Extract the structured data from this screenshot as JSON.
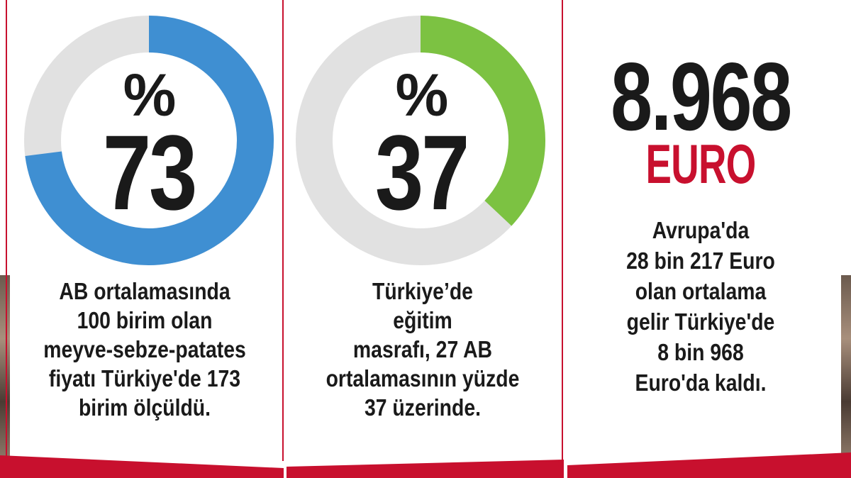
{
  "colors": {
    "track": "#e1e1e1",
    "blue": "#3f8fd2",
    "green": "#7cc242",
    "accent_red": "#c8102e",
    "text": "#1a1a1a"
  },
  "chart_data": [
    {
      "type": "pie",
      "style": "donut",
      "percent_sign": "%",
      "value_label": "73",
      "value": 73,
      "max": 100,
      "color": "#3f8fd2",
      "caption_lines": [
        "AB ortalamasında",
        "100 birim olan",
        "meyve-sebze-patates",
        "fiyatı Türkiye'de 173",
        "birim ölçüldü."
      ]
    },
    {
      "type": "pie",
      "style": "donut",
      "percent_sign": "%",
      "value_label": "37",
      "value": 37,
      "max": 100,
      "color": "#7cc242",
      "caption_lines": [
        "Türkiye’de",
        "eğitim",
        "masrafı, 27 AB",
        "ortalamasının yüzde",
        "37 üzerinde."
      ]
    }
  ],
  "stat": {
    "value": "8.968",
    "unit": "EURO",
    "caption_lines": [
      "Avrupa'da",
      "28 bin 217 Euro",
      "olan ortalama",
      "gelir Türkiye'de",
      "8 bin 968",
      "Euro'da kaldı."
    ]
  }
}
